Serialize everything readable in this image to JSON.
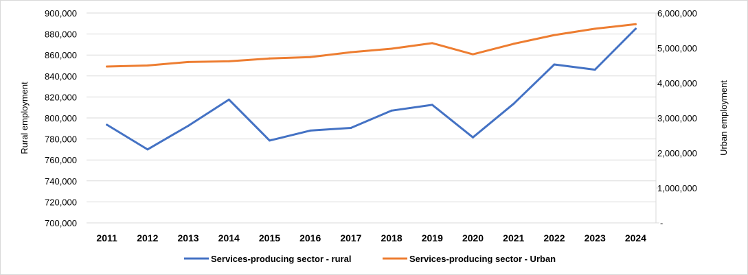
{
  "chart_data": {
    "type": "line",
    "categories": [
      "2011",
      "2012",
      "2013",
      "2014",
      "2015",
      "2016",
      "2017",
      "2018",
      "2019",
      "2020",
      "2021",
      "2022",
      "2023",
      "2024"
    ],
    "ylabel": "Rural employment",
    "y2label": "Urban employment",
    "ylim": [
      700000,
      900000
    ],
    "y2lim": [
      0,
      6000000
    ],
    "y_ticks": [
      {
        "value": 700000,
        "label": "700,000"
      },
      {
        "value": 720000,
        "label": "720,000"
      },
      {
        "value": 740000,
        "label": "740,000"
      },
      {
        "value": 760000,
        "label": "760,000"
      },
      {
        "value": 780000,
        "label": "780,000"
      },
      {
        "value": 800000,
        "label": "800,000"
      },
      {
        "value": 820000,
        "label": "820,000"
      },
      {
        "value": 840000,
        "label": "840,000"
      },
      {
        "value": 860000,
        "label": "860,000"
      },
      {
        "value": 880000,
        "label": "880,000"
      },
      {
        "value": 900000,
        "label": "900,000"
      }
    ],
    "y2_ticks": [
      {
        "value": 0,
        "label": "-"
      },
      {
        "value": 1000000,
        "label": "1,000,000"
      },
      {
        "value": 2000000,
        "label": "2,000,000"
      },
      {
        "value": 3000000,
        "label": "3,000,000"
      },
      {
        "value": 4000000,
        "label": "4,000,000"
      },
      {
        "value": 5000000,
        "label": "5,000,000"
      },
      {
        "value": 6000000,
        "label": "6,000,000"
      }
    ],
    "gridlines": true,
    "legend_position": "bottom",
    "series": [
      {
        "name": "Services-producing sector - rural",
        "axis": "left",
        "color": "#4472c4",
        "values": [
          793500,
          770000,
          792500,
          817500,
          778500,
          788000,
          790500,
          807000,
          812500,
          781500,
          813500,
          851000,
          846000,
          885000
        ]
      },
      {
        "name": "Services-producing sector - Urban",
        "axis": "right",
        "color": "#ed7d31",
        "values": [
          4470000,
          4500000,
          4600000,
          4620000,
          4700000,
          4740000,
          4880000,
          4980000,
          5140000,
          4820000,
          5120000,
          5370000,
          5550000,
          5680000
        ]
      }
    ]
  }
}
